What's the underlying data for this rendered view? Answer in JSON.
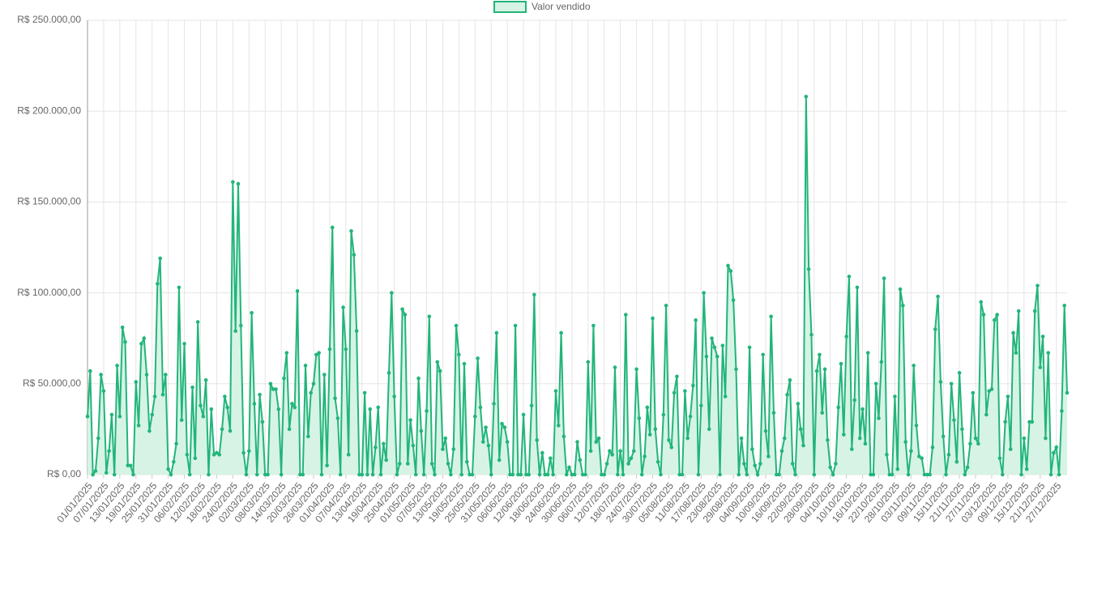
{
  "chart_data": {
    "type": "line",
    "legend_label": "Valor vendido",
    "series": [
      {
        "name": "Valor vendido",
        "color": "#22b57a",
        "fill_color": "#d6f3e6",
        "values": [
          32000,
          57000,
          0,
          2000,
          20000,
          55000,
          46000,
          1000,
          13000,
          33000,
          0,
          60000,
          32000,
          81000,
          73000,
          5000,
          5000,
          0,
          51000,
          27000,
          72000,
          75000,
          55000,
          24000,
          33000,
          43000,
          105000,
          119000,
          44000,
          55000,
          3000,
          0,
          7000,
          17000,
          103000,
          30000,
          72000,
          11000,
          0,
          48000,
          9000,
          84000,
          38000,
          32000,
          52000,
          0,
          36000,
          11000,
          12000,
          11000,
          25000,
          43000,
          37000,
          24000,
          161000,
          79000,
          160000,
          82000,
          12000,
          0,
          13000,
          89000,
          39000,
          0,
          44000,
          29000,
          0,
          0,
          50000,
          47000,
          47000,
          36000,
          0,
          53000,
          67000,
          25000,
          39000,
          37000,
          101000,
          0,
          0,
          60000,
          21000,
          45000,
          50000,
          66000,
          67000,
          0,
          55000,
          5000,
          69000,
          136000,
          42000,
          31000,
          0,
          92000,
          69000,
          11000,
          134000,
          121000,
          79000,
          0,
          0,
          45000,
          0,
          36000,
          0,
          15000,
          37000,
          0,
          17000,
          8000,
          56000,
          100000,
          43000,
          0,
          6000,
          91000,
          88000,
          6000,
          30000,
          16000,
          0,
          53000,
          24000,
          0,
          35000,
          87000,
          6000,
          0,
          62000,
          57000,
          14000,
          20000,
          6000,
          0,
          14000,
          82000,
          66000,
          0,
          61000,
          7000,
          0,
          0,
          32000,
          64000,
          37000,
          18000,
          26000,
          16000,
          0,
          39000,
          78000,
          8000,
          28000,
          26000,
          18000,
          0,
          0,
          82000,
          0,
          0,
          33000,
          0,
          0,
          38000,
          99000,
          19000,
          0,
          12000,
          0,
          0,
          9000,
          0,
          46000,
          27000,
          78000,
          21000,
          0,
          4000,
          0,
          0,
          18000,
          8000,
          0,
          0,
          62000,
          13000,
          82000,
          18000,
          20000,
          0,
          0,
          6000,
          13000,
          11000,
          59000,
          0,
          13000,
          0,
          88000,
          6000,
          9000,
          13000,
          58000,
          31000,
          0,
          10000,
          37000,
          22000,
          86000,
          25000,
          7000,
          0,
          33000,
          93000,
          19000,
          15000,
          45000,
          54000,
          0,
          0,
          46000,
          20000,
          32000,
          49000,
          85000,
          0,
          38000,
          100000,
          65000,
          25000,
          75000,
          70000,
          65000,
          0,
          71000,
          43000,
          115000,
          112000,
          96000,
          58000,
          0,
          20000,
          6000,
          0,
          70000,
          14000,
          5000,
          0,
          6000,
          66000,
          24000,
          10000,
          87000,
          34000,
          0,
          0,
          13000,
          20000,
          44000,
          52000,
          6000,
          0,
          39000,
          25000,
          16000,
          208000,
          113000,
          77000,
          0,
          57000,
          66000,
          34000,
          58000,
          19000,
          4000,
          0,
          6000,
          37000,
          61000,
          22000,
          76000,
          109000,
          14000,
          41000,
          103000,
          20000,
          36000,
          17000,
          67000,
          0,
          0,
          50000,
          31000,
          62000,
          108000,
          11000,
          0,
          0,
          43000,
          3000,
          102000,
          93000,
          18000,
          0,
          13000,
          60000,
          27000,
          10000,
          9000,
          0,
          0,
          0,
          15000,
          80000,
          98000,
          51000,
          21000,
          0,
          11000,
          50000,
          30000,
          7000,
          56000,
          25000,
          0,
          4000,
          17000,
          45000,
          20000,
          17000,
          95000,
          88000,
          33000,
          46000,
          47000,
          85000,
          88000,
          9000,
          0,
          29000,
          43000,
          14000,
          78000,
          67000,
          90000,
          0,
          20000,
          3000,
          29000,
          29000,
          90000,
          104000,
          59000,
          76000,
          20000,
          67000,
          0,
          12000,
          15000,
          0,
          35000,
          93000,
          45000
        ]
      }
    ],
    "categories": [
      "01/01/2025",
      null,
      null,
      null,
      null,
      null,
      "07/01/2025",
      null,
      null,
      null,
      null,
      null,
      "13/01/2025",
      null,
      null,
      null,
      null,
      null,
      "19/01/2025",
      null,
      null,
      null,
      null,
      null,
      "25/01/2025",
      null,
      null,
      null,
      null,
      null,
      "31/01/2025",
      null,
      null,
      null,
      null,
      null,
      "06/02/2025",
      null,
      null,
      null,
      null,
      null,
      "12/02/2025",
      null,
      null,
      null,
      null,
      null,
      "18/02/2025",
      null,
      null,
      null,
      null,
      null,
      "24/02/2025",
      null,
      null,
      null,
      null,
      null,
      "02/03/2025",
      null,
      null,
      null,
      null,
      null,
      "08/03/2025",
      null,
      null,
      null,
      null,
      null,
      "14/03/2025",
      null,
      null,
      null,
      null,
      null,
      "20/03/2025",
      null,
      null,
      null,
      null,
      null,
      "26/03/2025",
      null,
      null,
      null,
      null,
      null,
      "01/04/2025",
      null,
      null,
      null,
      null,
      null,
      "07/04/2025",
      null,
      null,
      null,
      null,
      null,
      "13/04/2025",
      null,
      null,
      null,
      null,
      null,
      "19/04/2025",
      null,
      null,
      null,
      null,
      null,
      "25/04/2025",
      null,
      null,
      null,
      null,
      null,
      "01/05/2025",
      null,
      null,
      null,
      null,
      null,
      "07/05/2025",
      null,
      null,
      null,
      null,
      null,
      "13/05/2025",
      null,
      null,
      null,
      null,
      null,
      "19/05/2025",
      null,
      null,
      null,
      null,
      null,
      "25/05/2025",
      null,
      null,
      null,
      null,
      null,
      "31/05/2025",
      null,
      null,
      null,
      null,
      null,
      "06/06/2025",
      null,
      null,
      null,
      null,
      null,
      "12/06/2025",
      null,
      null,
      null,
      null,
      null,
      "18/06/2025",
      null,
      null,
      null,
      null,
      null,
      "24/06/2025",
      null,
      null,
      null,
      null,
      null,
      "30/06/2025",
      null,
      null,
      null,
      null,
      null,
      "06/07/2025",
      null,
      null,
      null,
      null,
      null,
      "12/07/2025",
      null,
      null,
      null,
      null,
      null,
      "18/07/2025",
      null,
      null,
      null,
      null,
      null,
      "24/07/2025",
      null,
      null,
      null,
      null,
      null,
      "30/07/2025",
      null,
      null,
      null,
      null,
      null,
      "05/08/2025",
      null,
      null,
      null,
      null,
      null,
      "11/08/2025",
      null,
      null,
      null,
      null,
      null,
      "17/08/2025",
      null,
      null,
      null,
      null,
      null,
      "23/08/2025",
      null,
      null,
      null,
      null,
      null,
      "29/08/2025",
      null,
      null,
      null,
      null,
      null,
      "04/09/2025",
      null,
      null,
      null,
      null,
      null,
      "10/09/2025",
      null,
      null,
      null,
      null,
      null,
      "16/09/2025",
      null,
      null,
      null,
      null,
      null,
      "22/09/2025",
      null,
      null,
      null,
      null,
      null,
      "28/09/2025",
      null,
      null,
      null,
      null,
      null,
      "04/10/2025",
      null,
      null,
      null,
      null,
      null,
      "10/10/2025",
      null,
      null,
      null,
      null,
      null,
      "16/10/2025",
      null,
      null,
      null,
      null,
      null,
      "22/10/2025",
      null,
      null,
      null,
      null,
      null,
      "28/10/2025",
      null,
      null,
      null,
      null,
      null,
      "03/11/2025",
      null,
      null,
      null,
      null,
      null,
      "09/11/2025",
      null,
      null,
      null,
      null,
      null,
      "15/11/2025",
      null,
      null,
      null,
      null,
      null,
      "21/11/2025",
      null,
      null,
      null,
      null,
      null,
      "27/11/2025",
      null,
      null,
      null,
      null,
      null,
      "03/12/2025",
      null,
      null,
      null,
      null,
      null,
      "09/12/2025",
      null,
      null,
      null,
      null,
      null,
      "15/12/2025",
      null,
      null,
      null,
      null,
      null,
      "21/12/2025",
      null,
      null,
      null,
      null,
      null,
      "27/12/2025",
      null,
      null,
      null,
      null
    ],
    "ylim": [
      0,
      250000
    ],
    "yticks": [
      {
        "value": 0,
        "label": "R$ 0,00"
      },
      {
        "value": 50000,
        "label": "R$ 50.000,00"
      },
      {
        "value": 100000,
        "label": "R$ 100.000,00"
      },
      {
        "value": 150000,
        "label": "R$ 150.000,00"
      },
      {
        "value": 200000,
        "label": "R$ 200.000,00"
      },
      {
        "value": 250000,
        "label": "R$ 250.000,00"
      }
    ],
    "grid": true
  }
}
